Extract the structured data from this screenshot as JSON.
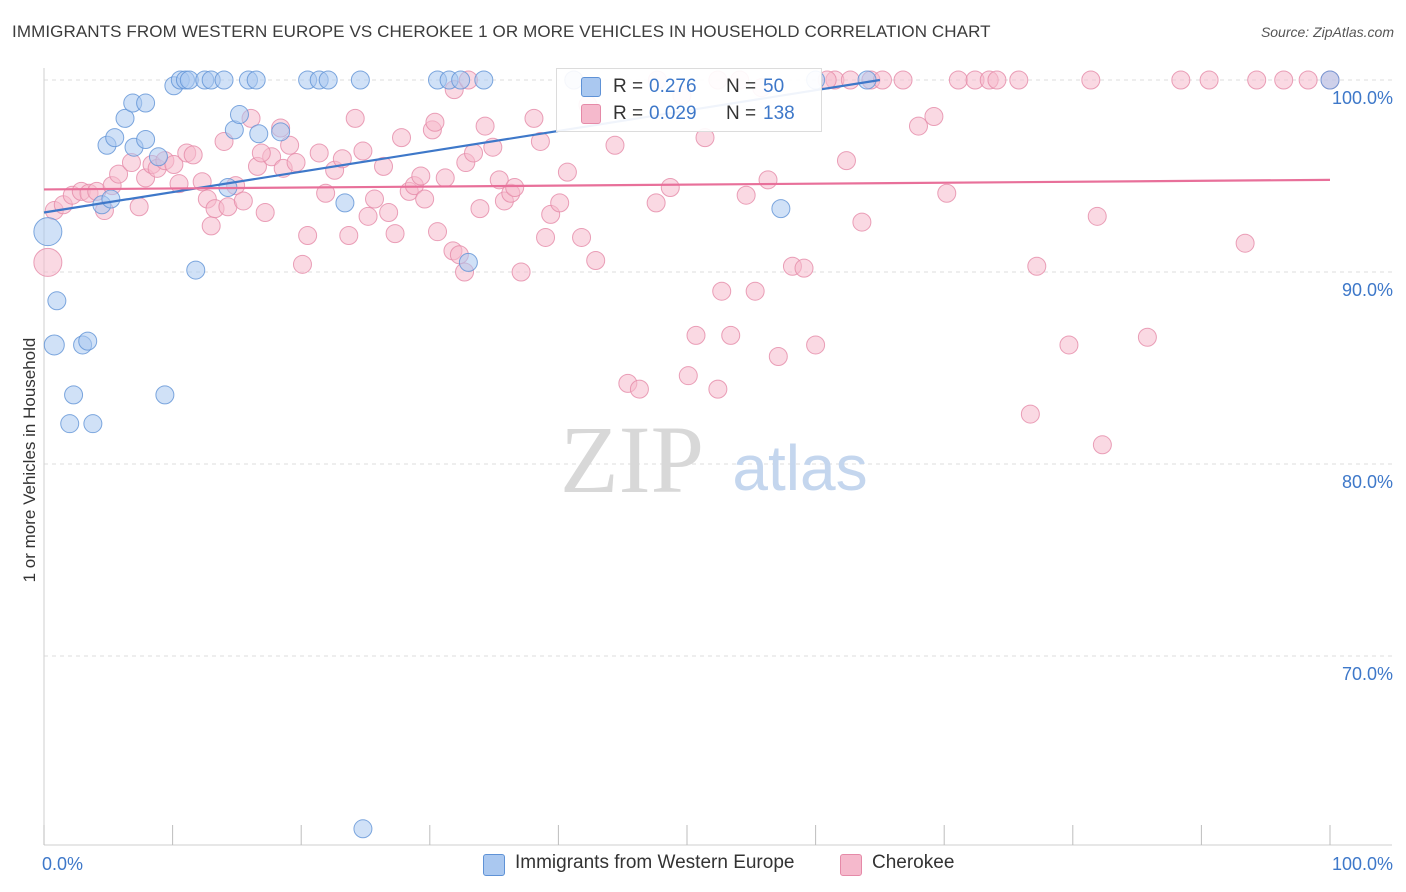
{
  "header": {
    "title": "IMMIGRANTS FROM WESTERN EUROPE VS CHEROKEE 1 OR MORE VEHICLES IN HOUSEHOLD CORRELATION CHART",
    "source": "Source: ZipAtlas.com"
  },
  "watermark": {
    "zip": "ZIP",
    "atlas": "atlas"
  },
  "legend": {
    "r_label": "R =",
    "n_label": "N =",
    "series1": {
      "r": "0.276",
      "n": "50"
    },
    "series2": {
      "r": "0.029",
      "n": "138"
    }
  },
  "bottom_legend": {
    "series1": "Immigrants from Western Europe",
    "series2": "Cherokee"
  },
  "colors": {
    "blue_fill": "#aac8f0",
    "blue_stroke": "#5f92d6",
    "blue_line": "#3e78c9",
    "pink_fill": "#f5b9cc",
    "pink_stroke": "#e58aa8",
    "pink_line": "#e8709a",
    "tick_text": "#3e78c9",
    "grid": "#dedede"
  },
  "chart_data": {
    "type": "scatter",
    "ylabel": "1 or more Vehicles in Household",
    "xlim": [
      0,
      100
    ],
    "ylim": [
      60.5,
      101.5
    ],
    "x_tick_labels": [
      {
        "value": 0,
        "text": "0.0%"
      },
      {
        "value": 100,
        "text": "100.0%"
      }
    ],
    "y_ticks": [
      {
        "value": 100,
        "text": "100.0%"
      },
      {
        "value": 90,
        "text": "90.0%"
      },
      {
        "value": 80,
        "text": "80.0%"
      },
      {
        "value": 70,
        "text": "70.0%"
      }
    ],
    "grid": "horizontal-dashed",
    "series": [
      {
        "name": "Immigrants from Western Europe",
        "color": "blue",
        "trend": {
          "x": [
            0,
            65
          ],
          "y": [
            93.1,
            100.0
          ]
        },
        "points": [
          [
            0.3,
            92.1,
            14
          ],
          [
            1.0,
            88.5,
            9
          ],
          [
            0.8,
            86.2,
            10
          ],
          [
            3.0,
            86.2,
            9
          ],
          [
            3.4,
            86.4,
            9
          ],
          [
            2.3,
            83.6,
            9
          ],
          [
            2.0,
            82.1,
            9
          ],
          [
            3.8,
            82.1,
            9
          ],
          [
            9.4,
            83.6,
            9
          ],
          [
            11.8,
            90.1,
            9
          ],
          [
            4.5,
            93.5,
            9
          ],
          [
            5.2,
            93.8,
            9
          ],
          [
            7.0,
            96.5,
            9
          ],
          [
            8.9,
            96.0,
            9
          ],
          [
            7.9,
            96.9,
            9
          ],
          [
            4.9,
            96.6,
            9
          ],
          [
            5.5,
            97.0,
            9
          ],
          [
            6.3,
            98.0,
            9
          ],
          [
            6.9,
            98.8,
            9
          ],
          [
            7.9,
            98.8,
            9
          ],
          [
            10.1,
            99.7,
            9
          ],
          [
            10.6,
            100.0,
            9
          ],
          [
            11.0,
            100.0,
            9
          ],
          [
            11.3,
            100.0,
            9
          ],
          [
            12.5,
            100.0,
            9
          ],
          [
            13.0,
            100.0,
            9
          ],
          [
            14.0,
            100.0,
            9
          ],
          [
            15.9,
            100.0,
            9
          ],
          [
            16.5,
            100.0,
            9
          ],
          [
            20.5,
            100.0,
            9
          ],
          [
            21.4,
            100.0,
            9
          ],
          [
            22.1,
            100.0,
            9
          ],
          [
            24.6,
            100.0,
            9
          ],
          [
            30.6,
            100.0,
            9
          ],
          [
            31.5,
            100.0,
            9
          ],
          [
            32.4,
            100.0,
            9
          ],
          [
            34.2,
            100.0,
            9
          ],
          [
            14.8,
            97.4,
            9
          ],
          [
            15.2,
            98.2,
            9
          ],
          [
            16.7,
            97.2,
            9
          ],
          [
            18.4,
            97.3,
            9
          ],
          [
            14.3,
            94.4,
            9
          ],
          [
            23.4,
            93.6,
            9
          ],
          [
            33.0,
            90.5,
            9
          ],
          [
            41.2,
            100.0,
            9
          ],
          [
            60.0,
            100.0,
            9
          ],
          [
            64.0,
            100.0,
            9
          ],
          [
            100.0,
            100.0,
            9
          ],
          [
            57.3,
            93.3,
            9
          ],
          [
            24.8,
            61.0,
            9
          ]
        ]
      },
      {
        "name": "Cherokee",
        "color": "pink",
        "trend": {
          "x": [
            0,
            100
          ],
          "y": [
            94.3,
            94.8
          ]
        },
        "points": [
          [
            0.3,
            90.5,
            14
          ],
          [
            0.8,
            93.2,
            9
          ],
          [
            1.5,
            93.5,
            9
          ],
          [
            2.2,
            94.0,
            9
          ],
          [
            2.9,
            94.2,
            9
          ],
          [
            3.5,
            94.1,
            9
          ],
          [
            4.1,
            94.2,
            9
          ],
          [
            4.7,
            93.2,
            9
          ],
          [
            5.3,
            94.5,
            9
          ],
          [
            5.8,
            95.1,
            9
          ],
          [
            6.8,
            95.7,
            9
          ],
          [
            7.4,
            93.4,
            9
          ],
          [
            7.9,
            94.9,
            9
          ],
          [
            8.4,
            95.6,
            9
          ],
          [
            8.8,
            95.4,
            9
          ],
          [
            9.4,
            95.8,
            9
          ],
          [
            10.1,
            95.6,
            9
          ],
          [
            10.5,
            94.6,
            9
          ],
          [
            11.1,
            96.2,
            9
          ],
          [
            11.6,
            96.1,
            9
          ],
          [
            12.3,
            94.7,
            9
          ],
          [
            12.7,
            93.8,
            9
          ],
          [
            13.0,
            92.4,
            9
          ],
          [
            13.3,
            93.3,
            9
          ],
          [
            14.0,
            96.8,
            9
          ],
          [
            14.3,
            93.4,
            9
          ],
          [
            14.9,
            94.5,
            9
          ],
          [
            15.5,
            93.7,
            9
          ],
          [
            16.1,
            98.0,
            9
          ],
          [
            16.6,
            95.5,
            9
          ],
          [
            17.2,
            93.1,
            9
          ],
          [
            17.7,
            96.0,
            9
          ],
          [
            18.4,
            97.5,
            9
          ],
          [
            18.6,
            95.4,
            9
          ],
          [
            19.1,
            96.6,
            9
          ],
          [
            19.6,
            95.7,
            9
          ],
          [
            20.1,
            90.4,
            9
          ],
          [
            20.5,
            91.9,
            9
          ],
          [
            21.4,
            96.2,
            9
          ],
          [
            21.9,
            94.1,
            9
          ],
          [
            22.6,
            95.3,
            9
          ],
          [
            23.2,
            95.9,
            9
          ],
          [
            23.7,
            91.9,
            9
          ],
          [
            24.2,
            98.0,
            9
          ],
          [
            24.8,
            96.3,
            9
          ],
          [
            25.2,
            92.9,
            9
          ],
          [
            25.7,
            93.8,
            9
          ],
          [
            26.4,
            95.5,
            9
          ],
          [
            26.8,
            93.1,
            9
          ],
          [
            27.3,
            92.0,
            9
          ],
          [
            27.8,
            97.0,
            9
          ],
          [
            28.4,
            94.2,
            9
          ],
          [
            28.8,
            94.5,
            9
          ],
          [
            29.3,
            95.0,
            9
          ],
          [
            29.6,
            93.8,
            9
          ],
          [
            30.2,
            97.4,
            9
          ],
          [
            30.6,
            92.1,
            9
          ],
          [
            31.2,
            94.9,
            9
          ],
          [
            31.8,
            91.1,
            9
          ],
          [
            32.3,
            90.9,
            9
          ],
          [
            32.7,
            90.0,
            9
          ],
          [
            32.8,
            95.7,
            9
          ],
          [
            33.4,
            96.2,
            9
          ],
          [
            33.9,
            93.3,
            9
          ],
          [
            34.3,
            97.6,
            9
          ],
          [
            34.9,
            96.5,
            9
          ],
          [
            35.4,
            94.8,
            9
          ],
          [
            35.8,
            93.7,
            9
          ],
          [
            36.3,
            94.1,
            9
          ],
          [
            36.6,
            94.4,
            9
          ],
          [
            37.1,
            90.0,
            9
          ],
          [
            38.1,
            98.0,
            9
          ],
          [
            38.6,
            96.8,
            9
          ],
          [
            39.0,
            91.8,
            9
          ],
          [
            39.4,
            93.0,
            9
          ],
          [
            40.1,
            93.6,
            9
          ],
          [
            40.7,
            95.2,
            9
          ],
          [
            41.8,
            91.8,
            9
          ],
          [
            41.2,
            100.0,
            9
          ],
          [
            42.3,
            98.7,
            9
          ],
          [
            42.9,
            90.6,
            9
          ],
          [
            44.4,
            96.6,
            9
          ],
          [
            45.4,
            84.2,
            9
          ],
          [
            46.3,
            83.9,
            9
          ],
          [
            47.6,
            93.6,
            9
          ],
          [
            48.7,
            94.4,
            9
          ],
          [
            50.1,
            84.6,
            9
          ],
          [
            50.7,
            86.7,
            9
          ],
          [
            51.4,
            97.0,
            9
          ],
          [
            52.4,
            83.9,
            9
          ],
          [
            52.7,
            89.0,
            9
          ],
          [
            53.4,
            86.7,
            9
          ],
          [
            54.6,
            94.0,
            9
          ],
          [
            55.3,
            89.0,
            9
          ],
          [
            56.3,
            94.8,
            9
          ],
          [
            57.1,
            85.6,
            9
          ],
          [
            58.2,
            90.3,
            9
          ],
          [
            59.1,
            90.2,
            9
          ],
          [
            60.0,
            86.2,
            9
          ],
          [
            61.5,
            100.0,
            9
          ],
          [
            62.4,
            95.8,
            9
          ],
          [
            63.6,
            92.6,
            9
          ],
          [
            64.3,
            100.0,
            9
          ],
          [
            65.2,
            100.0,
            9
          ],
          [
            66.8,
            100.0,
            9
          ],
          [
            68.0,
            97.6,
            9
          ],
          [
            69.2,
            98.1,
            9
          ],
          [
            70.2,
            94.1,
            9
          ],
          [
            71.1,
            100.0,
            9
          ],
          [
            72.4,
            100.0,
            9
          ],
          [
            73.5,
            100.0,
            9
          ],
          [
            74.1,
            100.0,
            9
          ],
          [
            75.8,
            100.0,
            9
          ],
          [
            76.7,
            82.6,
            9
          ],
          [
            77.2,
            90.3,
            9
          ],
          [
            79.7,
            86.2,
            9
          ],
          [
            81.4,
            100.0,
            9
          ],
          [
            82.3,
            81.0,
            9
          ],
          [
            81.9,
            92.9,
            9
          ],
          [
            85.8,
            86.6,
            9
          ],
          [
            88.4,
            100.0,
            9
          ],
          [
            90.6,
            100.0,
            9
          ],
          [
            93.4,
            91.5,
            9
          ],
          [
            94.3,
            100.0,
            9
          ],
          [
            96.4,
            100.0,
            9
          ],
          [
            98.3,
            100.0,
            9
          ],
          [
            100.0,
            100.0,
            9
          ],
          [
            30.4,
            97.8,
            9
          ],
          [
            31.9,
            99.5,
            9
          ],
          [
            33.0,
            100.0,
            9
          ],
          [
            47.7,
            100.0,
            9
          ],
          [
            49.6,
            99.2,
            9
          ],
          [
            52.4,
            100.0,
            9
          ],
          [
            54.1,
            100.0,
            9
          ],
          [
            55.8,
            99.6,
            9
          ],
          [
            60.9,
            100.0,
            9
          ],
          [
            62.7,
            100.0,
            9
          ],
          [
            16.9,
            96.2,
            9
          ]
        ]
      }
    ]
  }
}
